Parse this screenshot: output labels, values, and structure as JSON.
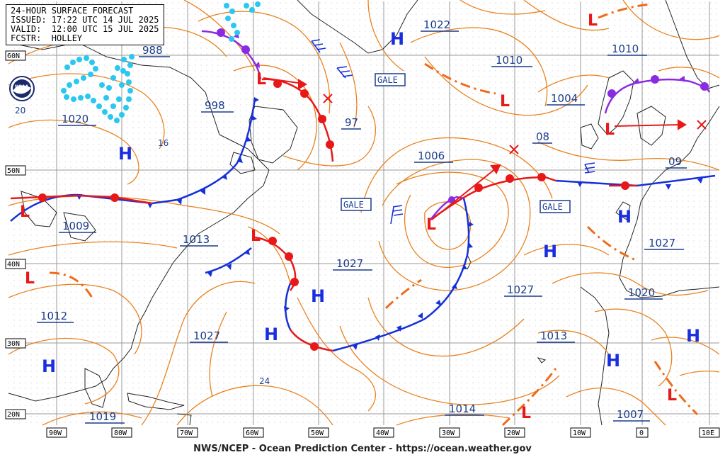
{
  "header": {
    "line1": "24-HOUR SURFACE FORECAST",
    "line2": "ISSUED: 17:22 UTC 14 JUL 2025",
    "line3": "VALID:  12:00 UTC 15 JUL 2025",
    "line4": "FCSTR:  HOLLEY"
  },
  "footer": "NWS/NCEP - Ocean Prediction Center - https://ocean.weather.gov",
  "logo_text": "NOAA",
  "lat_labels": [
    "60N",
    "50N",
    "40N",
    "30N",
    "20N"
  ],
  "lon_labels": [
    "90W",
    "80W",
    "70W",
    "60W",
    "50W",
    "40W",
    "30W",
    "20W",
    "10W",
    "0",
    "10E"
  ],
  "isobar_labels": [
    "988",
    "1022",
    "1010",
    "1010",
    "1004",
    "998",
    "1020",
    "97",
    "08",
    "1006",
    "09",
    "1009",
    "1013",
    "1027",
    "1027",
    "1027",
    "1012",
    "1027",
    "1013",
    "1020",
    "1014",
    "1019",
    "1007"
  ],
  "small_labels": [
    "20",
    "16",
    "24"
  ],
  "gale_labels": [
    "GALE",
    "GALE",
    "GALE"
  ],
  "high_symbol": "H",
  "low_symbol": "L",
  "colors": {
    "isobar": "#e8821e",
    "cold_front": "#1530d8",
    "warm_front": "#e81818",
    "occluded": "#8a2be2",
    "trough": "#f06a1a",
    "low": "#e81818",
    "high": "#1a2ee0",
    "ice": "#29c8f0",
    "grid": "#888888"
  }
}
